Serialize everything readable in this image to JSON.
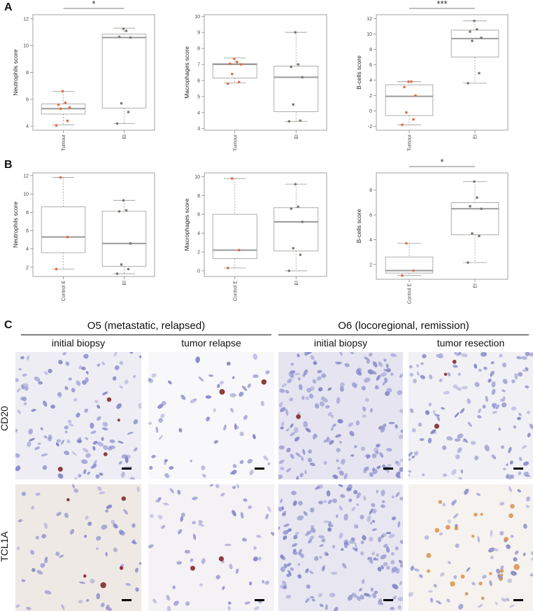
{
  "panels": {
    "A": "A",
    "B": "B",
    "C": "C"
  },
  "chart_data": [
    {
      "id": "a1",
      "type": "box",
      "ylabel": "Neutrophils score",
      "categories": [
        "Tumour",
        "EI"
      ],
      "yticks": [
        4,
        6,
        8,
        10,
        12
      ],
      "ylim": [
        3.7,
        12.3
      ],
      "significance": "*",
      "boxes": [
        {
          "min": 4.1,
          "q1": 4.9,
          "median": 5.3,
          "q3": 5.65,
          "max": 6.6
        },
        {
          "min": 4.2,
          "q1": 5.35,
          "median": 10.6,
          "q3": 10.85,
          "max": 11.3
        }
      ],
      "points": [
        [
          4.05,
          4.4,
          5.3,
          5.4,
          5.6,
          5.75,
          6.6
        ],
        [
          4.2,
          5.05,
          5.7,
          10.6,
          10.65,
          11.1,
          11.25
        ]
      ]
    },
    {
      "id": "a2",
      "type": "box",
      "ylabel": "Macrophages score",
      "categories": [
        "Tumour",
        "EI"
      ],
      "yticks": [
        3,
        4,
        5,
        6,
        7,
        8,
        9,
        10
      ],
      "ylim": [
        2.9,
        10.1
      ],
      "significance": "",
      "boxes": [
        {
          "min": 5.85,
          "q1": 6.15,
          "median": 7.0,
          "q3": 7.05,
          "max": 7.4
        },
        {
          "min": 3.45,
          "q1": 4.05,
          "median": 6.2,
          "q3": 6.9,
          "max": 9.0
        }
      ],
      "points": [
        [
          5.8,
          5.9,
          6.4,
          7.0,
          7.05,
          7.15,
          7.35
        ],
        [
          3.45,
          3.5,
          4.5,
          6.2,
          6.85,
          7.0,
          9.0
        ]
      ]
    },
    {
      "id": "a3",
      "type": "box",
      "ylabel": "B-cells score",
      "categories": [
        "Tumour",
        "EI"
      ],
      "yticks": [
        -2,
        0,
        2,
        4,
        6,
        8,
        10,
        12
      ],
      "ylim": [
        -2.5,
        12.5
      ],
      "significance": "***",
      "boxes": [
        {
          "min": -1.8,
          "q1": -0.6,
          "median": 1.9,
          "q3": 3.4,
          "max": 3.8
        },
        {
          "min": 3.6,
          "q1": 7.0,
          "median": 9.4,
          "q3": 10.5,
          "max": 11.7
        }
      ],
      "points": [
        [
          -1.8,
          -1.1,
          -0.2,
          2.0,
          3.1,
          3.8,
          3.8
        ],
        [
          3.6,
          4.9,
          9.1,
          9.5,
          10.3,
          10.6,
          11.7
        ]
      ]
    },
    {
      "id": "b1",
      "type": "box",
      "ylabel": "Neutrophils score",
      "categories": [
        "Control E",
        "EI"
      ],
      "yticks": [
        2,
        4,
        6,
        8,
        10,
        12
      ],
      "ylim": [
        1.0,
        12.3
      ],
      "significance": "",
      "boxes": [
        {
          "min": 1.8,
          "q1": 3.6,
          "median": 5.3,
          "q3": 8.6,
          "max": 11.8
        },
        {
          "min": 1.3,
          "q1": 2.1,
          "median": 4.6,
          "q3": 8.1,
          "max": 9.3
        }
      ],
      "points": [
        [
          1.8,
          5.3,
          11.8
        ],
        [
          1.3,
          1.8,
          2.3,
          4.6,
          8.1,
          8.2,
          9.3
        ]
      ]
    },
    {
      "id": "b2",
      "type": "box",
      "ylabel": "Macrophages score",
      "categories": [
        "Control E",
        "EI"
      ],
      "yticks": [
        0,
        2,
        4,
        6,
        8,
        10
      ],
      "ylim": [
        -0.6,
        10.4
      ],
      "significance": "",
      "boxes": [
        {
          "min": 0.3,
          "q1": 1.3,
          "median": 2.2,
          "q3": 6.0,
          "max": 9.8
        },
        {
          "min": 0.0,
          "q1": 2.1,
          "median": 5.2,
          "q3": 6.7,
          "max": 9.2
        }
      ],
      "points": [
        [
          0.3,
          2.2,
          9.8
        ],
        [
          0.0,
          1.7,
          2.4,
          5.2,
          6.6,
          6.8,
          9.2
        ]
      ]
    },
    {
      "id": "b3",
      "type": "box",
      "ylabel": "B-cells score",
      "categories": [
        "Control E",
        "EI"
      ],
      "yticks": [
        2,
        4,
        6,
        8
      ],
      "ylim": [
        0.8,
        9.4
      ],
      "significance": "*",
      "boxes": [
        {
          "min": 1.1,
          "q1": 1.3,
          "median": 1.5,
          "q3": 2.6,
          "max": 3.7
        },
        {
          "min": 2.15,
          "q1": 4.4,
          "median": 6.5,
          "q3": 7.0,
          "max": 8.7
        }
      ],
      "points": [
        [
          1.1,
          1.5,
          3.7
        ],
        [
          2.15,
          4.3,
          4.5,
          6.5,
          6.7,
          7.4,
          8.7
        ]
      ]
    }
  ],
  "colors": {
    "tumour_point": "#e8673a",
    "ei_point": "#7a7a6e",
    "box": "#9a9a9a",
    "median": "#9a9a9a"
  },
  "histology": {
    "groups": [
      {
        "title": "O5 (metastatic, relapsed)",
        "columns": [
          "initial biopsy",
          "tumor relapse"
        ]
      },
      {
        "title": "O6 (locoregional, remission)",
        "columns": [
          "initial biopsy",
          "tumor resection"
        ]
      }
    ],
    "rows": [
      "CD20",
      "TCL1A"
    ]
  }
}
